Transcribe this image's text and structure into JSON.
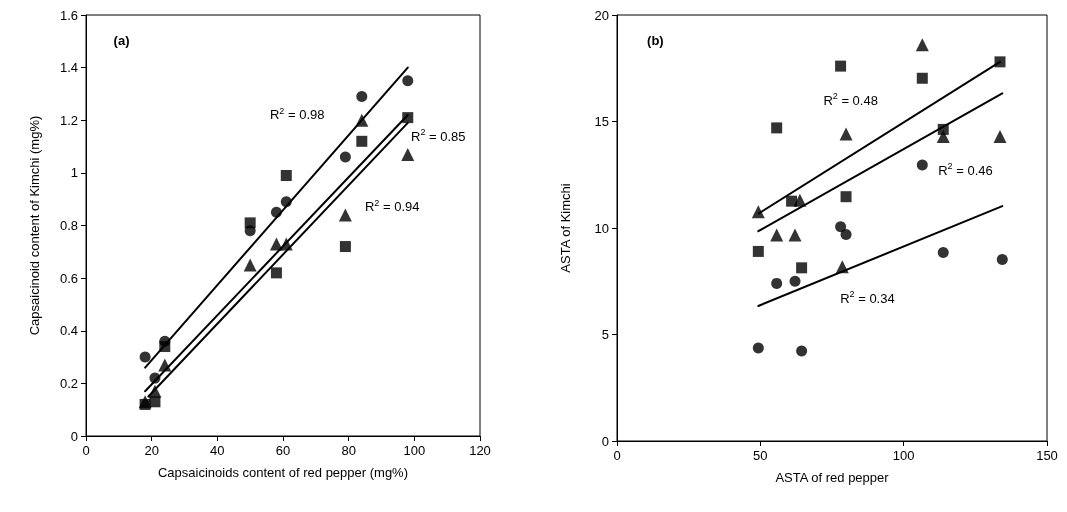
{
  "chart_data": [
    {
      "type": "scatter",
      "xlabel": "Capsaicinoids content of red pepper (mg%)",
      "ylabel": "Capsaicinoid content of Kimchi (mg%)",
      "xlim": [
        0,
        120
      ],
      "xticks": [
        0,
        20,
        40,
        60,
        80,
        100,
        120
      ],
      "ylim": [
        0,
        1.6
      ],
      "yticks": [
        0,
        0.2,
        0.4,
        0.6,
        0.8,
        1,
        1.2,
        1.4,
        1.6
      ],
      "grid": false,
      "annotations": [
        "(a)",
        "R$^{2}$ = 0.98",
        "R$^{2}$ = 0.85",
        "R$^{2}$ = 0.94"
      ],
      "series": [
        {
          "type": "scatter",
          "marker": "circle",
          "color": "#000000",
          "x": [
            18,
            21,
            24,
            50,
            58,
            61,
            79,
            84,
            98
          ],
          "values": [
            0.3,
            0.22,
            0.36,
            0.78,
            0.85,
            0.89,
            1.06,
            1.29,
            1.35
          ]
        },
        {
          "type": "scatter",
          "marker": "square",
          "color": "#000000",
          "x": [
            18,
            21,
            24,
            50,
            58,
            61,
            79,
            84,
            98
          ],
          "values": [
            0.12,
            0.13,
            0.34,
            0.81,
            0.62,
            0.99,
            0.72,
            1.12,
            1.21
          ]
        },
        {
          "type": "scatter",
          "marker": "triangle",
          "color": "#000000",
          "x": [
            18,
            21,
            24,
            50,
            58,
            61,
            79,
            84,
            98
          ],
          "values": [
            0.13,
            0.17,
            0.27,
            0.65,
            0.73,
            0.73,
            0.84,
            1.2,
            1.07
          ]
        },
        {
          "type": "line",
          "marker": "none",
          "color": "#000000",
          "x": [
            18,
            98
          ],
          "values": [
            0.26,
            1.4
          ]
        },
        {
          "type": "line",
          "marker": "none",
          "color": "#000000",
          "x": [
            18,
            98
          ],
          "values": [
            0.17,
            1.22
          ]
        },
        {
          "type": "line",
          "marker": "none",
          "color": "#000000",
          "x": [
            19,
            98
          ],
          "values": [
            0.15,
            1.19
          ]
        }
      ]
    },
    {
      "type": "scatter",
      "xlabel": "ASTA of red pepper",
      "ylabel": "ASTA of Kimchi",
      "xlim": [
        0,
        150
      ],
      "xticks": [
        0,
        50,
        100,
        150
      ],
      "ylim": [
        0,
        20
      ],
      "yticks": [
        0,
        5,
        10,
        15,
        20
      ],
      "grid": false,
      "annotations": [
        "(b)",
        "R$^{2}$ = 0.48",
        "R$^{2}$ = 0.46",
        "R$^{2}$ = 0.34"
      ],
      "series": [
        {
          "type": "scatter",
          "marker": "square",
          "color": "#000000",
          "x": [
            49.3,
            55.7,
            60.9,
            64.4,
            78.0,
            79.9,
            106.5,
            113.8,
            133.6
          ],
          "values": [
            8.9,
            14.7,
            11.26,
            8.13,
            17.6,
            11.47,
            17.03,
            14.63,
            17.8
          ]
        },
        {
          "type": "scatter",
          "marker": "triangle",
          "color": "#000000",
          "x": [
            49.3,
            55.7,
            62.1,
            63.8,
            78.6,
            79.9,
            106.5,
            113.8,
            133.6
          ],
          "values": [
            10.76,
            9.67,
            9.67,
            11.3,
            8.18,
            14.41,
            18.6,
            14.29,
            14.29
          ]
        },
        {
          "type": "scatter",
          "marker": "circle",
          "color": "#000000",
          "x": [
            49.3,
            55.7,
            62.1,
            64.4,
            78.0,
            79.9,
            106.5,
            113.8,
            134.4
          ],
          "values": [
            4.37,
            7.4,
            7.5,
            4.23,
            10.06,
            9.7,
            12.96,
            8.85,
            8.52
          ]
        },
        {
          "type": "line",
          "marker": "none",
          "color": "#000000",
          "x": [
            49.5,
            133.6
          ],
          "values": [
            10.69,
            17.8
          ]
        },
        {
          "type": "line",
          "marker": "none",
          "color": "#000000",
          "x": [
            49.3,
            134.4
          ],
          "values": [
            9.85,
            16.32
          ]
        },
        {
          "type": "line",
          "marker": "none",
          "color": "#000000",
          "x": [
            49.3,
            134.4
          ],
          "values": [
            6.34,
            11.03
          ]
        }
      ]
    }
  ]
}
